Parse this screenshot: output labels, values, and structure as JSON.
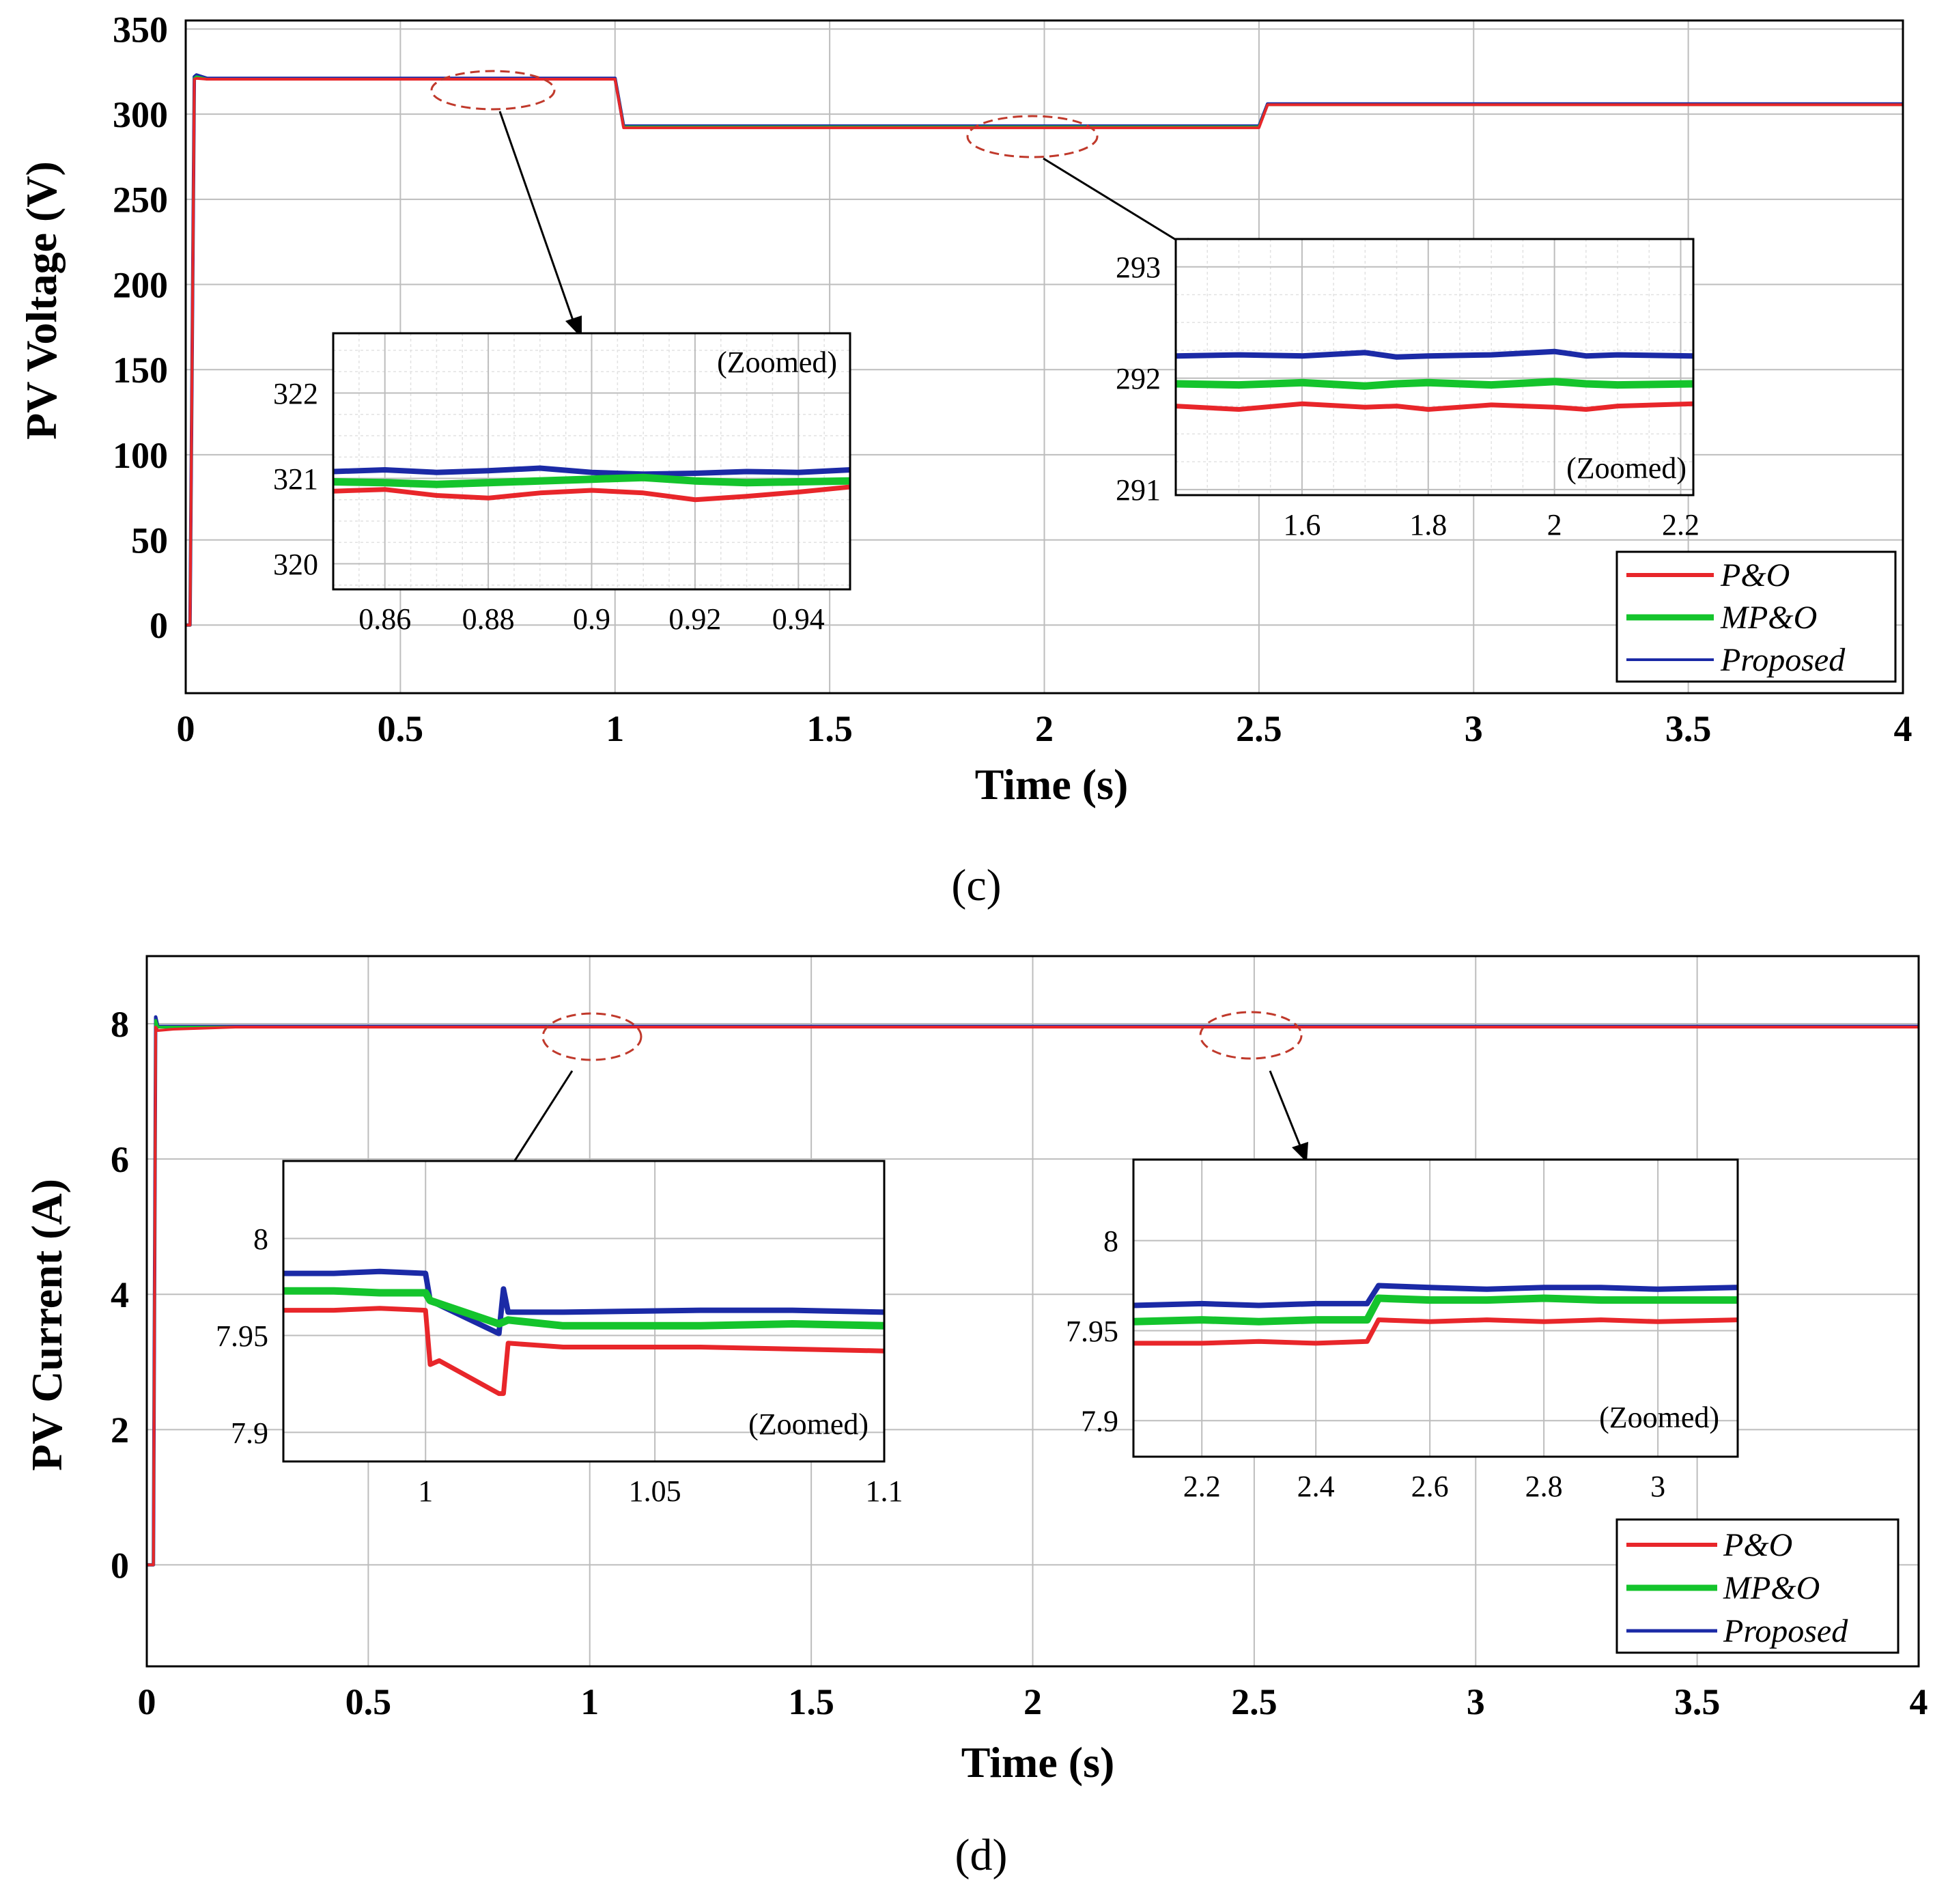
{
  "colors": {
    "po": "#e8262a",
    "mpo": "#14c42c",
    "proposed": "#1b2aa6",
    "callout": "#c0392b",
    "grid": "#bdbdbd"
  },
  "figure": {
    "caption_c": "(c)",
    "caption_d": "(d)"
  },
  "chart_data": [
    {
      "id": "c",
      "type": "line",
      "xlabel": "Time (s)",
      "ylabel": "PV Voltage (V)",
      "xlim": [
        0,
        4
      ],
      "ylim": [
        -40,
        355
      ],
      "xticks": [
        0,
        0.5,
        1,
        1.5,
        2,
        2.5,
        3,
        3.5,
        4
      ],
      "xtick_labels": [
        "0",
        "0.5",
        "1",
        "1.5",
        "2",
        "2.5",
        "3",
        "3.5",
        "4"
      ],
      "yticks": [
        0,
        50,
        100,
        150,
        200,
        250,
        300,
        350
      ],
      "ytick_labels": [
        "0",
        "50",
        "100",
        "150",
        "200",
        "250",
        "300",
        "350"
      ],
      "legend": [
        "P&O",
        "MP&O",
        "Proposed"
      ],
      "series": [
        {
          "name": "Proposed",
          "x": [
            0,
            0.01,
            0.02,
            0.025,
            0.05,
            1.0,
            1.02,
            2.5,
            2.52,
            4.0
          ],
          "y": [
            0,
            0,
            322,
            323,
            321,
            321,
            293,
            293,
            306,
            306
          ]
        },
        {
          "name": "MP&O",
          "x": [
            0,
            0.01,
            0.02,
            0.025,
            0.05,
            1.0,
            1.02,
            2.5,
            2.52,
            4.0
          ],
          "y": [
            0,
            0,
            321,
            322,
            320.5,
            320.5,
            292.5,
            292.5,
            305.5,
            305.5
          ]
        },
        {
          "name": "P&O",
          "x": [
            0,
            0.01,
            0.02,
            0.025,
            0.05,
            1.0,
            1.02,
            2.5,
            2.52,
            4.0
          ],
          "y": [
            0,
            0,
            320.5,
            321,
            320.5,
            320.5,
            292,
            292,
            305.5,
            305.5
          ]
        }
      ],
      "insets": [
        {
          "id": "c1",
          "annotation": "(Zoomed)",
          "xlim": [
            0.85,
            0.95
          ],
          "ylim": [
            319.7,
            322.7
          ],
          "xticks": [
            0.86,
            0.88,
            0.9,
            0.92,
            0.94
          ],
          "xtick_labels": [
            "0.86",
            "0.88",
            "0.9",
            "0.92",
            "0.94"
          ],
          "yticks": [
            320,
            321,
            322
          ],
          "ytick_labels": [
            "320",
            "321",
            "322"
          ],
          "series": [
            {
              "name": "Proposed",
              "x": [
                0.85,
                0.86,
                0.87,
                0.88,
                0.89,
                0.9,
                0.91,
                0.92,
                0.93,
                0.94,
                0.95
              ],
              "y": [
                321.08,
                321.1,
                321.07,
                321.09,
                321.12,
                321.07,
                321.05,
                321.06,
                321.08,
                321.07,
                321.1
              ]
            },
            {
              "name": "MP&O",
              "x": [
                0.85,
                0.86,
                0.87,
                0.88,
                0.89,
                0.9,
                0.91,
                0.92,
                0.93,
                0.94,
                0.95
              ],
              "y": [
                320.96,
                320.95,
                320.93,
                320.95,
                320.97,
                320.99,
                321.01,
                320.97,
                320.95,
                320.96,
                320.97
              ]
            },
            {
              "name": "P&O",
              "x": [
                0.85,
                0.86,
                0.87,
                0.88,
                0.89,
                0.9,
                0.91,
                0.92,
                0.93,
                0.94,
                0.95
              ],
              "y": [
                320.85,
                320.87,
                320.8,
                320.77,
                320.83,
                320.86,
                320.83,
                320.75,
                320.79,
                320.84,
                320.9
              ]
            }
          ]
        },
        {
          "id": "c2",
          "annotation": "(Zoomed)",
          "xlim": [
            1.4,
            2.22
          ],
          "ylim": [
            290.95,
            293.25
          ],
          "xticks": [
            1.6,
            1.8,
            2,
            2.2
          ],
          "xtick_labels": [
            "1.6",
            "1.8",
            "2",
            "2.2"
          ],
          "yticks": [
            291,
            292,
            293
          ],
          "ytick_labels": [
            "291",
            "292",
            "293"
          ],
          "series": [
            {
              "name": "Proposed",
              "x": [
                1.4,
                1.5,
                1.6,
                1.7,
                1.75,
                1.8,
                1.9,
                2.0,
                2.05,
                2.1,
                2.22
              ],
              "y": [
                292.2,
                292.21,
                292.2,
                292.23,
                292.19,
                292.2,
                292.21,
                292.24,
                292.2,
                292.21,
                292.2
              ]
            },
            {
              "name": "MP&O",
              "x": [
                1.4,
                1.5,
                1.6,
                1.7,
                1.75,
                1.8,
                1.9,
                2.0,
                2.05,
                2.1,
                2.22
              ],
              "y": [
                291.95,
                291.94,
                291.96,
                291.93,
                291.95,
                291.96,
                291.94,
                291.97,
                291.95,
                291.94,
                291.95
              ]
            },
            {
              "name": "P&O",
              "x": [
                1.4,
                1.5,
                1.6,
                1.7,
                1.75,
                1.8,
                1.9,
                2.0,
                2.05,
                2.1,
                2.22
              ],
              "y": [
                291.75,
                291.72,
                291.77,
                291.74,
                291.75,
                291.72,
                291.76,
                291.74,
                291.72,
                291.75,
                291.77
              ]
            }
          ]
        }
      ]
    },
    {
      "id": "d",
      "type": "line",
      "xlabel": "Time (s)",
      "ylabel": "PV Current (A)",
      "xlim": [
        0,
        4
      ],
      "ylim": [
        -1.5,
        9
      ],
      "xticks": [
        0,
        0.5,
        1,
        1.5,
        2,
        2.5,
        3,
        3.5,
        4
      ],
      "xtick_labels": [
        "0",
        "0.5",
        "1",
        "1.5",
        "2",
        "2.5",
        "3",
        "3.5",
        "4"
      ],
      "yticks": [
        0,
        2,
        4,
        6,
        8
      ],
      "ytick_labels": [
        "0",
        "2",
        "4",
        "6",
        "8"
      ],
      "legend": [
        "P&O",
        "MP&O",
        "Proposed"
      ],
      "series": [
        {
          "name": "Proposed",
          "x": [
            0,
            0.015,
            0.02,
            0.025,
            0.04,
            4.0
          ],
          "y": [
            0,
            0,
            8.1,
            7.96,
            7.96,
            7.96
          ]
        },
        {
          "name": "MP&O",
          "x": [
            0,
            0.015,
            0.02,
            0.025,
            0.04,
            4.0
          ],
          "y": [
            0,
            0,
            8.05,
            7.95,
            7.95,
            7.95
          ]
        },
        {
          "name": "P&O",
          "x": [
            0,
            0.015,
            0.02,
            0.025,
            0.06,
            0.2,
            4.0
          ],
          "y": [
            0,
            0,
            7.95,
            7.9,
            7.92,
            7.95,
            7.95
          ]
        }
      ],
      "insets": [
        {
          "id": "d1",
          "annotation": "(Zoomed)",
          "xlim": [
            0.969,
            1.1
          ],
          "ylim": [
            7.885,
            8.04
          ],
          "xticks": [
            1,
            1.05,
            1.1
          ],
          "xtick_labels": [
            "1",
            "1.05",
            "1.1"
          ],
          "yticks": [
            7.9,
            7.95,
            8.0
          ],
          "ytick_labels": [
            "7.9",
            "7.95",
            "8"
          ],
          "series": [
            {
              "name": "Proposed",
              "x": [
                0.969,
                0.98,
                0.99,
                1.0,
                1.001,
                1.016,
                1.017,
                1.018,
                1.03,
                1.06,
                1.08,
                1.1
              ],
              "y": [
                7.982,
                7.982,
                7.983,
                7.982,
                7.968,
                7.951,
                7.974,
                7.962,
                7.962,
                7.963,
                7.963,
                7.962
              ]
            },
            {
              "name": "MP&O",
              "x": [
                0.969,
                0.98,
                0.99,
                1.0,
                1.001,
                1.016,
                1.018,
                1.03,
                1.06,
                1.08,
                1.1
              ],
              "y": [
                7.973,
                7.973,
                7.972,
                7.972,
                7.968,
                7.956,
                7.958,
                7.955,
                7.955,
                7.956,
                7.955
              ]
            },
            {
              "name": "P&O",
              "x": [
                0.969,
                0.98,
                0.99,
                1.0,
                1.001,
                1.003,
                1.016,
                1.017,
                1.018,
                1.03,
                1.06,
                1.08,
                1.1
              ],
              "y": [
                7.963,
                7.963,
                7.964,
                7.963,
                7.935,
                7.937,
                7.92,
                7.92,
                7.946,
                7.944,
                7.944,
                7.943,
                7.942
              ]
            }
          ]
        },
        {
          "id": "d2",
          "annotation": "(Zoomed)",
          "xlim": [
            2.08,
            3.14
          ],
          "ylim": [
            7.88,
            8.045
          ],
          "xticks": [
            2.2,
            2.4,
            2.6,
            2.8,
            3
          ],
          "xtick_labels": [
            "2.2",
            "2.4",
            "2.6",
            "2.8",
            "3"
          ],
          "yticks": [
            7.9,
            7.95,
            8.0
          ],
          "ytick_labels": [
            "7.9",
            "7.95",
            "8"
          ],
          "series": [
            {
              "name": "Proposed",
              "x": [
                2.08,
                2.2,
                2.3,
                2.4,
                2.49,
                2.51,
                2.6,
                2.7,
                2.8,
                2.9,
                3.0,
                3.14
              ],
              "y": [
                7.964,
                7.965,
                7.964,
                7.965,
                7.965,
                7.975,
                7.974,
                7.973,
                7.974,
                7.974,
                7.973,
                7.974
              ]
            },
            {
              "name": "MP&O",
              "x": [
                2.08,
                2.2,
                2.3,
                2.4,
                2.49,
                2.51,
                2.6,
                2.7,
                2.8,
                2.9,
                3.0,
                3.14
              ],
              "y": [
                7.955,
                7.956,
                7.955,
                7.956,
                7.956,
                7.968,
                7.967,
                7.967,
                7.968,
                7.967,
                7.967,
                7.967
              ]
            },
            {
              "name": "P&O",
              "x": [
                2.08,
                2.2,
                2.3,
                2.4,
                2.49,
                2.51,
                2.6,
                2.7,
                2.8,
                2.9,
                3.0,
                3.14
              ],
              "y": [
                7.943,
                7.943,
                7.944,
                7.943,
                7.944,
                7.956,
                7.955,
                7.956,
                7.955,
                7.956,
                7.955,
                7.956
              ]
            }
          ]
        }
      ]
    }
  ]
}
